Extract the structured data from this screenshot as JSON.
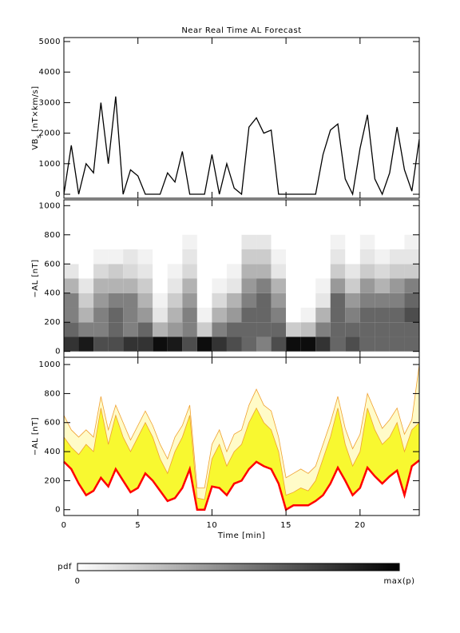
{
  "chart_data": [
    {
      "type": "line",
      "title": "Near Real Time AL Forecast",
      "ylabel": [
        "VB",
        "s",
        " [nT×km/s]"
      ],
      "x": [
        0,
        0.5,
        1,
        1.5,
        2,
        2.5,
        3,
        3.5,
        4,
        4.5,
        5,
        5.5,
        6,
        6.5,
        7,
        7.5,
        8,
        8.5,
        9,
        9.5,
        10,
        10.5,
        11,
        11.5,
        12,
        12.5,
        13,
        13.5,
        14,
        14.5,
        15,
        15.5,
        16,
        16.5,
        17,
        17.5,
        18,
        18.5,
        19,
        19.5,
        20,
        20.5,
        21,
        21.5,
        22,
        22.5,
        23,
        23.5,
        24
      ],
      "series": [
        {
          "color": "#000000",
          "values": [
            0,
            1600,
            0,
            1000,
            700,
            3000,
            1000,
            3200,
            0,
            800,
            600,
            0,
            0,
            0,
            700,
            400,
            1400,
            0,
            0,
            0,
            1300,
            0,
            1000,
            200,
            0,
            2200,
            2500,
            2000,
            2100,
            0,
            0,
            0,
            0,
            0,
            0,
            1300,
            2100,
            2300,
            500,
            0,
            1500,
            2600,
            500,
            0,
            700,
            2200,
            800,
            100,
            1800
          ]
        }
      ],
      "xlim": [
        0,
        24
      ],
      "xticks": [
        0,
        5,
        10,
        15,
        20
      ],
      "ylim": [
        -130,
        5130
      ],
      "yticks": [
        0,
        1000,
        2000,
        3000,
        4000,
        5000
      ]
    },
    {
      "type": "heatmap",
      "ylabel": "−AL [nT]",
      "xbins": [
        0,
        1,
        2,
        3,
        4,
        5,
        6,
        7,
        8,
        9,
        10,
        11,
        12,
        13,
        14,
        15,
        16,
        17,
        18,
        19,
        20,
        21,
        22,
        23,
        24
      ],
      "ybins": [
        0,
        100,
        200,
        300,
        400,
        500,
        600,
        700,
        800
      ],
      "z": [
        [
          0.8,
          0.6,
          0.5,
          0.5,
          0.3,
          0.1,
          0,
          0
        ],
        [
          0.9,
          0.5,
          0.3,
          0.2,
          0.1,
          0,
          0,
          0
        ],
        [
          0.7,
          0.5,
          0.5,
          0.4,
          0.3,
          0.15,
          0.05,
          0
        ],
        [
          0.7,
          0.6,
          0.6,
          0.5,
          0.3,
          0.2,
          0.05,
          0
        ],
        [
          0.8,
          0.5,
          0.5,
          0.5,
          0.3,
          0.15,
          0.1,
          0
        ],
        [
          0.8,
          0.6,
          0.4,
          0.3,
          0.2,
          0.1,
          0.05,
          0
        ],
        [
          0.95,
          0.3,
          0.1,
          0.05,
          0,
          0,
          0,
          0
        ],
        [
          0.9,
          0.4,
          0.3,
          0.2,
          0.1,
          0.05,
          0,
          0
        ],
        [
          0.7,
          0.5,
          0.5,
          0.4,
          0.3,
          0.15,
          0.1,
          0.05
        ],
        [
          0.95,
          0.2,
          0.05,
          0,
          0,
          0,
          0,
          0
        ],
        [
          0.8,
          0.5,
          0.3,
          0.15,
          0.05,
          0,
          0,
          0
        ],
        [
          0.7,
          0.6,
          0.4,
          0.3,
          0.1,
          0.05,
          0,
          0
        ],
        [
          0.6,
          0.6,
          0.6,
          0.5,
          0.4,
          0.3,
          0.2,
          0.1
        ],
        [
          0.5,
          0.6,
          0.6,
          0.6,
          0.5,
          0.3,
          0.2,
          0.1
        ],
        [
          0.7,
          0.6,
          0.5,
          0.4,
          0.3,
          0.1,
          0.05,
          0
        ],
        [
          0.95,
          0.2,
          0,
          0,
          0,
          0,
          0,
          0
        ],
        [
          0.95,
          0.25,
          0.05,
          0,
          0,
          0,
          0,
          0
        ],
        [
          0.8,
          0.5,
          0.3,
          0.1,
          0.05,
          0,
          0,
          0
        ],
        [
          0.6,
          0.6,
          0.6,
          0.6,
          0.4,
          0.2,
          0.1,
          0.05
        ],
        [
          0.7,
          0.6,
          0.5,
          0.4,
          0.2,
          0.1,
          0,
          0
        ],
        [
          0.6,
          0.6,
          0.6,
          0.5,
          0.4,
          0.2,
          0.1,
          0.05
        ],
        [
          0.6,
          0.6,
          0.6,
          0.5,
          0.3,
          0.15,
          0.05,
          0
        ],
        [
          0.6,
          0.6,
          0.6,
          0.5,
          0.4,
          0.2,
          0.1,
          0
        ],
        [
          0.6,
          0.6,
          0.7,
          0.6,
          0.5,
          0.2,
          0.1,
          0.05
        ]
      ],
      "colorbar": {
        "label": "pdf",
        "min_label": "0",
        "max_label": "max(p)"
      },
      "xlim": [
        0,
        24
      ],
      "xticks": [
        0,
        5,
        10,
        15,
        20
      ],
      "ylim": [
        -40,
        1040
      ],
      "yticks": [
        0,
        200,
        400,
        600,
        800,
        1000
      ]
    },
    {
      "type": "band",
      "ylabel": "−AL [nT]",
      "xlabel": "Time [min]",
      "x": [
        0,
        0.5,
        1,
        1.5,
        2,
        2.5,
        3,
        3.5,
        4,
        4.5,
        5,
        5.5,
        6,
        6.5,
        7,
        7.5,
        8,
        8.5,
        9,
        9.5,
        10,
        10.5,
        11,
        11.5,
        12,
        12.5,
        13,
        13.5,
        14,
        14.5,
        15,
        15.5,
        16,
        16.5,
        17,
        17.5,
        18,
        18.5,
        19,
        19.5,
        20,
        20.5,
        21,
        21.5,
        22,
        22.5,
        23,
        23.5,
        24
      ],
      "series": [
        {
          "color": "#ff0000",
          "values": [
            330,
            280,
            180,
            100,
            130,
            220,
            160,
            280,
            200,
            120,
            150,
            250,
            200,
            130,
            60,
            80,
            150,
            280,
            0,
            0,
            160,
            150,
            100,
            180,
            200,
            280,
            330,
            300,
            280,
            180,
            0,
            30,
            30,
            30,
            60,
            100,
            180,
            290,
            200,
            100,
            150,
            290,
            230,
            180,
            230,
            270,
            100,
            300,
            340
          ]
        },
        {
          "color": "#f8f830",
          "values": [
            500,
            430,
            380,
            450,
            400,
            700,
            450,
            650,
            500,
            400,
            500,
            600,
            500,
            350,
            250,
            400,
            500,
            650,
            80,
            70,
            350,
            450,
            300,
            400,
            450,
            600,
            700,
            600,
            550,
            400,
            100,
            120,
            150,
            130,
            200,
            350,
            500,
            700,
            450,
            300,
            400,
            700,
            550,
            450,
            500,
            600,
            400,
            550,
            600
          ]
        },
        {
          "color": "#fffbc8",
          "values": [
            650,
            550,
            500,
            550,
            500,
            780,
            550,
            720,
            600,
            480,
            580,
            680,
            580,
            450,
            350,
            500,
            580,
            720,
            150,
            150,
            450,
            550,
            400,
            520,
            550,
            720,
            830,
            720,
            680,
            500,
            220,
            250,
            280,
            250,
            300,
            450,
            600,
            780,
            560,
            420,
            520,
            800,
            680,
            560,
            620,
            700,
            520,
            620,
            1000
          ]
        }
      ],
      "edge_color": "#f0a030",
      "xlim": [
        0,
        24
      ],
      "xticks": [
        0,
        5,
        10,
        15,
        20
      ],
      "ylim": [
        -40,
        1050
      ],
      "yticks": [
        0,
        200,
        400,
        600,
        800,
        1000
      ]
    }
  ]
}
